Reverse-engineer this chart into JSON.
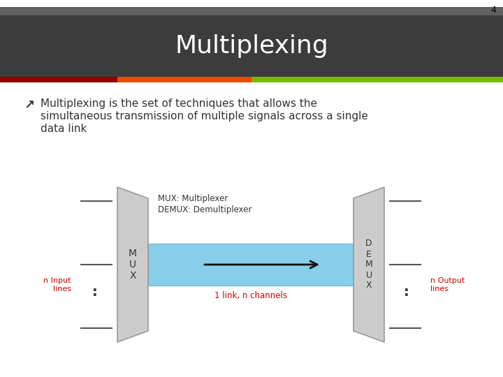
{
  "title": "Multiplexing",
  "slide_number": "4",
  "bullet_text_line1": "Multiplexing is the set of techniques that allows the",
  "bullet_text_line2": "simultaneous transmission of multiple signals across a single",
  "bullet_text_line3": "data link",
  "header_bg": "#3c3c3c",
  "header_top_strip": "#606060",
  "bar_colors": [
    "#8b0000",
    "#e05000",
    "#7ab800"
  ],
  "slide_bg": "#ffffff",
  "mux_label": "M\nU\nX",
  "demux_label": "D\nE\nM\nU\nX",
  "legend_line1": "MUX: Multiplexer",
  "legend_line2": "DEMUX: Demultiplexer",
  "channel_label": "1 link, n channels",
  "input_label": "n Input\nlines",
  "output_label": "n Output\nlines",
  "arrow_color": "#111111",
  "text_color": "#333333",
  "red_color": "#cc0000",
  "trap_fill": "#cccccc",
  "trap_edge": "#999999",
  "channel_fill": "#87ceeb"
}
